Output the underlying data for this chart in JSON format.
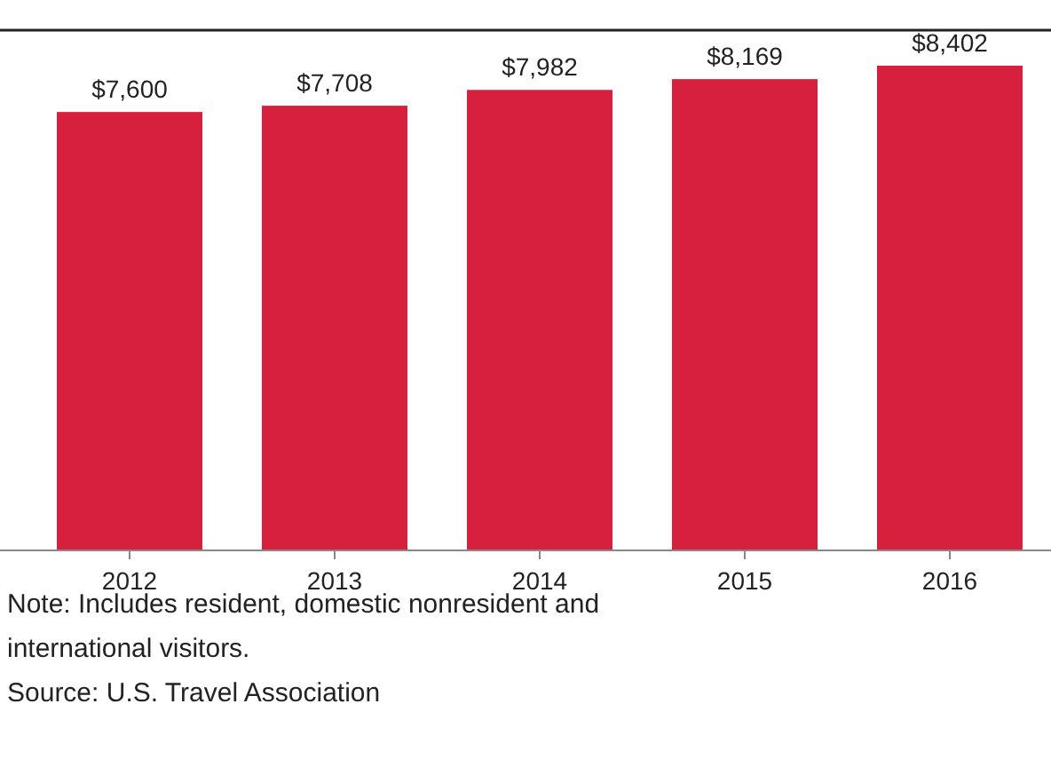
{
  "chart_data": {
    "type": "bar",
    "categories": [
      "2012",
      "2013",
      "2014",
      "2015",
      "2016"
    ],
    "values": [
      7600,
      7708,
      7982,
      8169,
      8402
    ],
    "value_labels": [
      "$7,600",
      "$7,708",
      "$7,982",
      "$8,169",
      "$8,402"
    ],
    "color": "#d7203d",
    "annotations": [
      "Note: Includes resident, domestic nonresident and international visitors.",
      "Source: U.S. Travel Association"
    ]
  }
}
